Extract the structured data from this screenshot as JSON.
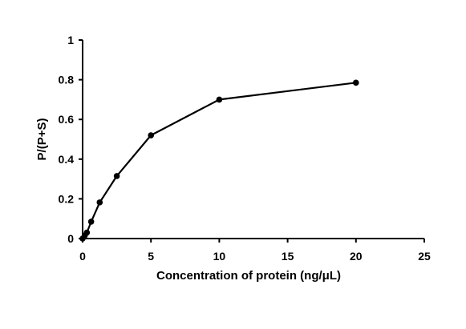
{
  "chart_data": {
    "type": "line",
    "title": "",
    "xlabel": "Concentration of protein (ng/μL)",
    "ylabel": "P/(P+S)",
    "xlim": [
      0,
      25
    ],
    "ylim": [
      0,
      1
    ],
    "x_ticks": [
      0,
      5,
      10,
      15,
      20,
      25
    ],
    "y_ticks": [
      0,
      0.2,
      0.4,
      0.6,
      0.8,
      1
    ],
    "x_tick_labels": [
      "0",
      "5",
      "10",
      "15",
      "20",
      "25"
    ],
    "y_tick_labels": [
      "0",
      "0.2",
      "0.4",
      "0.6",
      "0.8",
      "1"
    ],
    "grid": false,
    "legend": "none",
    "series": [
      {
        "color": "#000000",
        "marker": "circle",
        "x": [
          0,
          0.156,
          0.3125,
          0.625,
          1.25,
          2.5,
          5,
          10,
          20
        ],
        "y": [
          0.0,
          0.015,
          0.03,
          0.085,
          0.182,
          0.315,
          0.52,
          0.7,
          0.785
        ]
      }
    ]
  }
}
